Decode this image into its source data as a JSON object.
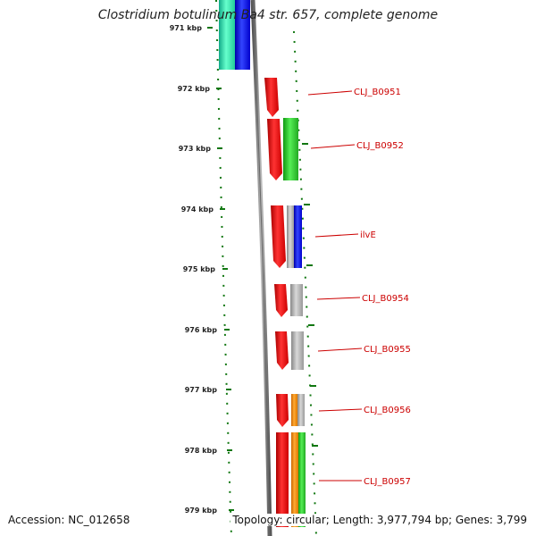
{
  "title": "Clostridium botulinum Ba4 str. 657, complete genome",
  "footer": {
    "accession": "Accession: NC_012658",
    "summary": "Topology: circular; Length: 3,977,794 bp; Genes: 3,799"
  },
  "scale_labels": [
    "971 kbp",
    "972 kbp",
    "973 kbp",
    "974 kbp",
    "975 kbp",
    "976 kbp",
    "977 kbp",
    "978 kbp",
    "979 kbp"
  ],
  "gene_labels": [
    "CLJ_B0951",
    "CLJ_B0952",
    "ilvE",
    "CLJ_B0954",
    "CLJ_B0955",
    "CLJ_B0956",
    "CLJ_B0957"
  ],
  "colors": {
    "forward_cds": "#ee1111",
    "cog_green": "#33cc33",
    "cog_blue": "#1111ee",
    "cog_gray": "#aaaaaa",
    "cog_orange": "#ee8800",
    "cog_teal": "#22ddaa",
    "backbone": "#777777",
    "ticks": "#117711",
    "label_line": "#cc0000"
  }
}
